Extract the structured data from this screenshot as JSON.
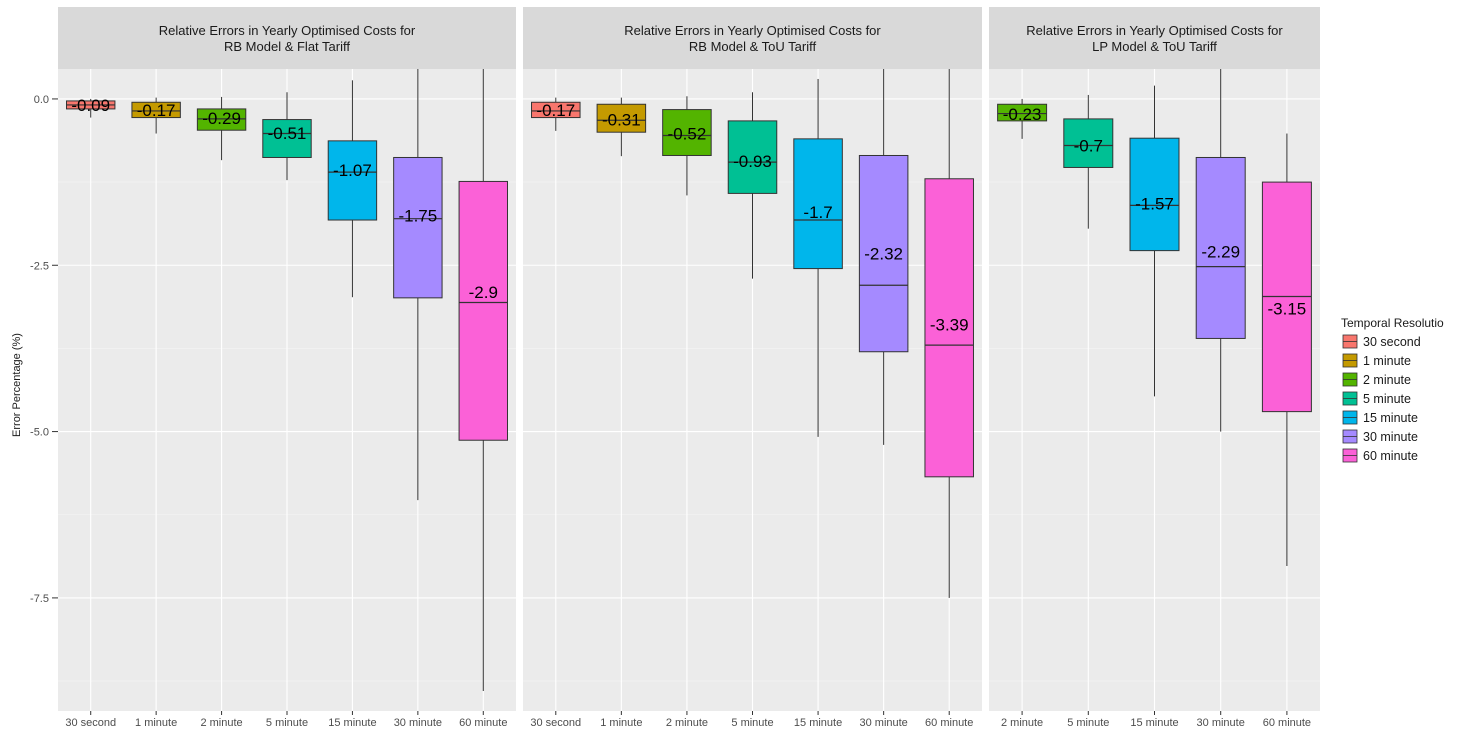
{
  "chart_data": {
    "type": "boxplot",
    "ylabel": "Error Percentage (%)",
    "ylim": [
      -9.2,
      0.45
    ],
    "y_ticks": [
      {
        "value": 0,
        "label": "0.0"
      },
      {
        "value": -2.5,
        "label": "-2.5"
      },
      {
        "value": -5,
        "label": "-5.0"
      },
      {
        "value": -7.5,
        "label": "-7.5"
      }
    ],
    "grid": true,
    "legend": {
      "title": "Temporal Resolutio",
      "placement": "right",
      "items": [
        {
          "label": "30 second",
          "color": "#F8766D"
        },
        {
          "label": "1 minute",
          "color": "#C49A00"
        },
        {
          "label": "2 minute",
          "color": "#53B400"
        },
        {
          "label": "5 minute",
          "color": "#00C094"
        },
        {
          "label": "15 minute",
          "color": "#00B6EB"
        },
        {
          "label": "30 minute",
          "color": "#A58AFF"
        },
        {
          "label": "60 minute",
          "color": "#FB61D7"
        }
      ]
    },
    "panels": [
      {
        "title_line1": "Relative Errors in Yearly Optimised Costs for",
        "title_line2": "RB Model & Flat Tariff",
        "boxes": [
          {
            "category": "30 second",
            "color": "#F8766D",
            "whisker_low": -0.28,
            "q1": -0.15,
            "median": -0.09,
            "q3": -0.03,
            "whisker_high": 0.0,
            "label": "-0.09",
            "label_value": -0.09
          },
          {
            "category": "1 minute",
            "color": "#C49A00",
            "whisker_low": -0.52,
            "q1": -0.28,
            "median": -0.18,
            "q3": -0.05,
            "whisker_high": 0.02,
            "label": "-0.17",
            "label_value": -0.17
          },
          {
            "category": "2 minute",
            "color": "#53B400",
            "whisker_low": -0.92,
            "q1": -0.47,
            "median": -0.3,
            "q3": -0.15,
            "whisker_high": 0.03,
            "label": "-0.29",
            "label_value": -0.29
          },
          {
            "category": "5 minute",
            "color": "#00C094",
            "whisker_low": -1.22,
            "q1": -0.88,
            "median": -0.52,
            "q3": -0.31,
            "whisker_high": 0.1,
            "label": "-0.51",
            "label_value": -0.51
          },
          {
            "category": "15 minute",
            "color": "#00B6EB",
            "whisker_low": -2.98,
            "q1": -1.82,
            "median": -1.1,
            "q3": -0.63,
            "whisker_high": 0.28,
            "label": "-1.07",
            "label_value": -1.07
          },
          {
            "category": "30 minute",
            "color": "#A58AFF",
            "whisker_low": -6.03,
            "q1": -2.99,
            "median": -1.8,
            "q3": -0.88,
            "whisker_high": 0.45,
            "label": "-1.75",
            "label_value": -1.75
          },
          {
            "category": "60 minute",
            "color": "#FB61D7",
            "whisker_low": -8.9,
            "q1": -5.13,
            "median": -3.06,
            "q3": -1.24,
            "whisker_high": 0.45,
            "label": "-2.9",
            "label_value": -2.9
          }
        ]
      },
      {
        "title_line1": "Relative Errors in Yearly Optimised Costs for",
        "title_line2": "RB Model & ToU Tariff",
        "boxes": [
          {
            "category": "30 second",
            "color": "#F8766D",
            "whisker_low": -0.48,
            "q1": -0.28,
            "median": -0.18,
            "q3": -0.05,
            "whisker_high": 0.02,
            "label": "-0.17",
            "label_value": -0.17
          },
          {
            "category": "1 minute",
            "color": "#C49A00",
            "whisker_low": -0.86,
            "q1": -0.5,
            "median": -0.32,
            "q3": -0.08,
            "whisker_high": 0.02,
            "label": "-0.31",
            "label_value": -0.31
          },
          {
            "category": "2 minute",
            "color": "#53B400",
            "whisker_low": -1.45,
            "q1": -0.85,
            "median": -0.55,
            "q3": -0.16,
            "whisker_high": 0.04,
            "label": "-0.52",
            "label_value": -0.52
          },
          {
            "category": "5 minute",
            "color": "#00C094",
            "whisker_low": -2.7,
            "q1": -1.42,
            "median": -0.95,
            "q3": -0.33,
            "whisker_high": 0.1,
            "label": "-0.93",
            "label_value": -0.93
          },
          {
            "category": "15 minute",
            "color": "#00B6EB",
            "whisker_low": -5.08,
            "q1": -2.55,
            "median": -1.82,
            "q3": -0.6,
            "whisker_high": 0.3,
            "label": "-1.7",
            "label_value": -1.7
          },
          {
            "category": "30 minute",
            "color": "#A58AFF",
            "whisker_low": -5.2,
            "q1": -3.8,
            "median": -2.8,
            "q3": -0.85,
            "whisker_high": 0.45,
            "label": "-2.32",
            "label_value": -2.32
          },
          {
            "category": "60 minute",
            "color": "#FB61D7",
            "whisker_low": -7.5,
            "q1": -5.68,
            "median": -3.7,
            "q3": -1.2,
            "whisker_high": 0.45,
            "label": "-3.39",
            "label_value": -3.39
          }
        ]
      },
      {
        "title_line1": "Relative Errors in Yearly Optimised Costs for",
        "title_line2": "LP Model & ToU Tariff",
        "boxes": [
          {
            "category": "2 minute",
            "color": "#53B400",
            "whisker_low": -0.6,
            "q1": -0.33,
            "median": -0.22,
            "q3": -0.08,
            "whisker_high": 0.0,
            "label": "-0.23",
            "label_value": -0.23
          },
          {
            "category": "5 minute",
            "color": "#00C094",
            "whisker_low": -1.95,
            "q1": -1.03,
            "median": -0.7,
            "q3": -0.3,
            "whisker_high": 0.06,
            "label": "-0.7",
            "label_value": -0.7
          },
          {
            "category": "15 minute",
            "color": "#00B6EB",
            "whisker_low": -4.47,
            "q1": -2.28,
            "median": -1.6,
            "q3": -0.59,
            "whisker_high": 0.2,
            "label": "-1.57",
            "label_value": -1.57
          },
          {
            "category": "30 minute",
            "color": "#A58AFF",
            "whisker_low": -5.0,
            "q1": -3.6,
            "median": -2.52,
            "q3": -0.88,
            "whisker_high": 0.45,
            "label": "-2.29",
            "label_value": -2.29
          },
          {
            "category": "60 minute",
            "color": "#FB61D7",
            "whisker_low": -7.02,
            "q1": -4.7,
            "median": -2.97,
            "q3": -1.25,
            "whisker_high": -0.52,
            "label": "-3.15",
            "label_value": -3.15
          }
        ]
      }
    ]
  }
}
